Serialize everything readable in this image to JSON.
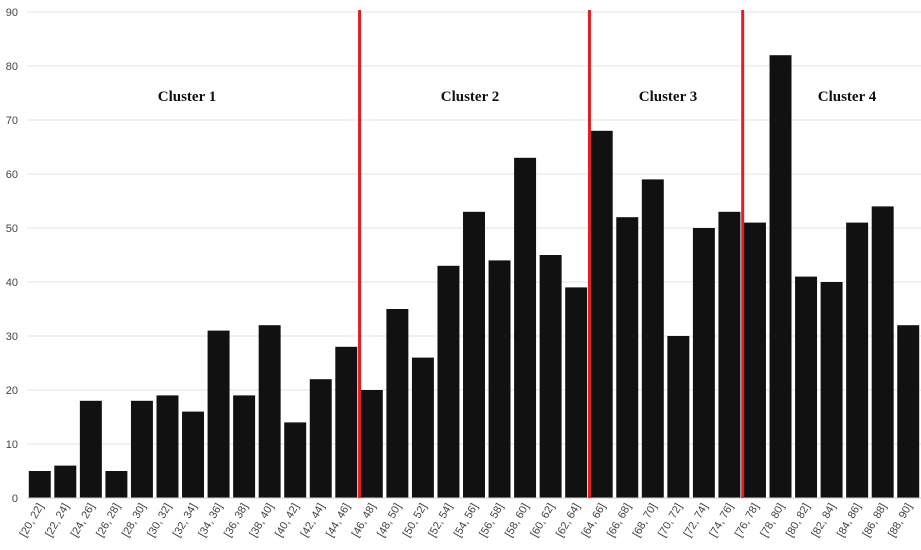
{
  "chart_data": {
    "type": "bar",
    "categories": [
      "[20, 22]",
      "[22, 24]",
      "[24, 26]",
      "[26, 28]",
      "[28, 30]",
      "[30, 32]",
      "[32, 34]",
      "[34, 36]",
      "[36, 38]",
      "[38, 40]",
      "[40, 42]",
      "[42, 44]",
      "[44, 46]",
      "[46, 48]",
      "[48, 50]",
      "[50, 52]",
      "[52, 54]",
      "[54, 56]",
      "[56, 58]",
      "[58, 60]",
      "[60, 62]",
      "[62, 64]",
      "[64, 66]",
      "[66, 68]",
      "[68, 70]",
      "[70, 72]",
      "[72, 74]",
      "[74, 76]",
      "[76, 78]",
      "[78, 80]",
      "[80, 82]",
      "[82, 84]",
      "[84, 86]",
      "[86, 88]",
      "[88, 90]"
    ],
    "values": [
      5,
      6,
      18,
      5,
      18,
      19,
      16,
      31,
      19,
      32,
      14,
      22,
      28,
      20,
      35,
      26,
      43,
      53,
      44,
      63,
      45,
      39,
      68,
      52,
      59,
      30,
      50,
      53,
      51,
      82,
      41,
      40,
      51,
      54,
      32
    ],
    "yticks": [
      0,
      10,
      20,
      30,
      40,
      50,
      60,
      70,
      80,
      90
    ],
    "ylim": [
      0,
      90
    ],
    "grid": true,
    "bar_color": "#111111",
    "divider_color": "#e02020",
    "dividers": [
      {
        "between": "[44, 46] | [46, 48]"
      },
      {
        "between": "[62, 64] | [64, 66]"
      },
      {
        "between": "[74, 76] | [76, 78]"
      }
    ],
    "clusters": [
      {
        "label": "Cluster 1",
        "from": 0,
        "to": 12
      },
      {
        "label": "Cluster 2",
        "from": 13,
        "to": 21
      },
      {
        "label": "Cluster 3",
        "from": 22,
        "to": 27
      },
      {
        "label": "Cluster 4",
        "from": 28,
        "to": 34
      }
    ]
  }
}
